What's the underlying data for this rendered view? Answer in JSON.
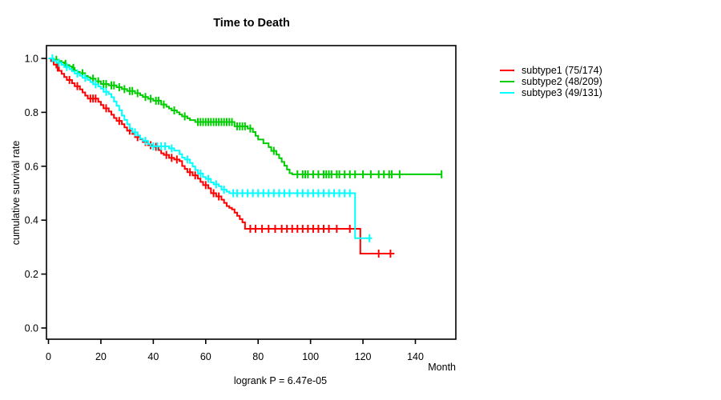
{
  "chart_data": {
    "type": "line",
    "variant": "kaplan-meier-step-survival",
    "title": "Time to Death",
    "xlabel": "Month",
    "ylabel": "cumulative survival rate",
    "annotation": "logrank P = 6.47e-05",
    "xlim": [
      0,
      155
    ],
    "ylim": [
      0,
      1.0
    ],
    "xticks": [
      0,
      20,
      40,
      60,
      80,
      100,
      120,
      140
    ],
    "xtick_labels": [
      "0",
      "20",
      "40",
      "60",
      "80",
      "100",
      "120",
      "140"
    ],
    "yticks": [
      0,
      0.2,
      0.4,
      0.6,
      0.8,
      1.0
    ],
    "ytick_labels": [
      "0.0",
      "0.2",
      "0.4",
      "0.6",
      "0.8",
      "1.0"
    ],
    "grid": false,
    "legend_position": "right-outside",
    "axis_color": "#000000",
    "series": [
      {
        "name": "subtype1 (75/174)",
        "color": "#ff0000",
        "start": [
          0,
          1.0
        ],
        "end_month": 132,
        "steps": [
          [
            1,
            0.99
          ],
          [
            2,
            0.977
          ],
          [
            3,
            0.966
          ],
          [
            4,
            0.954
          ],
          [
            5,
            0.943
          ],
          [
            6,
            0.931
          ],
          [
            7,
            0.92
          ],
          [
            9,
            0.908
          ],
          [
            10,
            0.897
          ],
          [
            12,
            0.885
          ],
          [
            13,
            0.874
          ],
          [
            14,
            0.862
          ],
          [
            15,
            0.851
          ],
          [
            19,
            0.839
          ],
          [
            20,
            0.827
          ],
          [
            21,
            0.815
          ],
          [
            23,
            0.803
          ],
          [
            24,
            0.791
          ],
          [
            25,
            0.779
          ],
          [
            26,
            0.768
          ],
          [
            28,
            0.756
          ],
          [
            29,
            0.744
          ],
          [
            30,
            0.732
          ],
          [
            32,
            0.72
          ],
          [
            33,
            0.708
          ],
          [
            35,
            0.7
          ],
          [
            36,
            0.69
          ],
          [
            38,
            0.678
          ],
          [
            40,
            0.672
          ],
          [
            42,
            0.66
          ],
          [
            43,
            0.648
          ],
          [
            44,
            0.642
          ],
          [
            46,
            0.631
          ],
          [
            48,
            0.625
          ],
          [
            50,
            0.619
          ],
          [
            51,
            0.601
          ],
          [
            52,
            0.59
          ],
          [
            53,
            0.578
          ],
          [
            55,
            0.566
          ],
          [
            57,
            0.554
          ],
          [
            58,
            0.542
          ],
          [
            59,
            0.53
          ],
          [
            61,
            0.518
          ],
          [
            62,
            0.5
          ],
          [
            64,
            0.488
          ],
          [
            66,
            0.476
          ],
          [
            67,
            0.464
          ],
          [
            68,
            0.452
          ],
          [
            69,
            0.446
          ],
          [
            70,
            0.44
          ],
          [
            71,
            0.428
          ],
          [
            72,
            0.416
          ],
          [
            73,
            0.404
          ],
          [
            74,
            0.392
          ],
          [
            75,
            0.368
          ],
          [
            119,
            0.276
          ]
        ],
        "censor_months": [
          3.5,
          8,
          11,
          16,
          17,
          18,
          22,
          27,
          31,
          34,
          37,
          39,
          41,
          45,
          47,
          49,
          54,
          56,
          60,
          63,
          65,
          77,
          79,
          81.5,
          84,
          86.5,
          89,
          91,
          93,
          95,
          97,
          99,
          101,
          103,
          105,
          107,
          110,
          115,
          126,
          130.5
        ]
      },
      {
        "name": "subtype2 (48/209)",
        "color": "#00cd00",
        "start": [
          0,
          1.0
        ],
        "end_month": 150,
        "steps": [
          [
            2,
            0.995
          ],
          [
            4,
            0.99
          ],
          [
            5,
            0.985
          ],
          [
            6,
            0.98
          ],
          [
            7,
            0.975
          ],
          [
            8,
            0.97
          ],
          [
            9,
            0.965
          ],
          [
            10,
            0.955
          ],
          [
            11,
            0.95
          ],
          [
            12,
            0.945
          ],
          [
            14,
            0.935
          ],
          [
            15,
            0.93
          ],
          [
            16,
            0.925
          ],
          [
            18,
            0.915
          ],
          [
            20,
            0.905
          ],
          [
            23,
            0.9
          ],
          [
            26,
            0.893
          ],
          [
            28,
            0.886
          ],
          [
            30,
            0.879
          ],
          [
            33,
            0.871
          ],
          [
            35,
            0.864
          ],
          [
            36,
            0.857
          ],
          [
            38,
            0.85
          ],
          [
            40,
            0.843
          ],
          [
            43,
            0.829
          ],
          [
            45,
            0.821
          ],
          [
            46,
            0.814
          ],
          [
            47,
            0.807
          ],
          [
            49,
            0.8
          ],
          [
            50,
            0.792
          ],
          [
            51,
            0.785
          ],
          [
            53,
            0.778
          ],
          [
            54,
            0.771
          ],
          [
            56,
            0.764
          ],
          [
            71,
            0.748
          ],
          [
            76,
            0.74
          ],
          [
            78,
            0.727
          ],
          [
            79,
            0.713
          ],
          [
            80,
            0.699
          ],
          [
            82,
            0.685
          ],
          [
            84,
            0.671
          ],
          [
            85,
            0.657
          ],
          [
            87,
            0.643
          ],
          [
            88,
            0.63
          ],
          [
            89,
            0.616
          ],
          [
            90,
            0.602
          ],
          [
            91,
            0.588
          ],
          [
            92,
            0.574
          ],
          [
            93,
            0.57
          ]
        ],
        "censor_months": [
          3,
          6.5,
          9.5,
          13,
          17,
          19,
          21,
          22,
          24,
          25,
          27,
          29,
          31,
          32,
          34,
          37,
          39,
          41,
          42,
          44,
          48,
          52,
          57,
          58,
          59,
          60,
          61,
          62,
          63,
          64,
          65,
          66,
          67,
          68,
          69,
          70,
          72,
          73,
          74,
          75,
          77,
          86,
          95,
          97,
          98,
          99,
          101,
          103,
          105,
          106,
          107,
          108,
          110,
          111,
          113,
          115,
          117,
          120,
          123,
          126,
          128,
          130,
          131,
          134,
          150
        ]
      },
      {
        "name": "subtype3 (49/131)",
        "color": "#00ffff",
        "start": [
          0,
          1.0
        ],
        "end_month": 123.5,
        "steps": [
          [
            2,
            0.992
          ],
          [
            3,
            0.984
          ],
          [
            5,
            0.976
          ],
          [
            6,
            0.968
          ],
          [
            8,
            0.96
          ],
          [
            9,
            0.952
          ],
          [
            10,
            0.944
          ],
          [
            12,
            0.936
          ],
          [
            13,
            0.928
          ],
          [
            15,
            0.92
          ],
          [
            16,
            0.912
          ],
          [
            17,
            0.904
          ],
          [
            19,
            0.896
          ],
          [
            20,
            0.888
          ],
          [
            21,
            0.876
          ],
          [
            23,
            0.868
          ],
          [
            24,
            0.856
          ],
          [
            25,
            0.84
          ],
          [
            26,
            0.824
          ],
          [
            27,
            0.808
          ],
          [
            28,
            0.788
          ],
          [
            29,
            0.772
          ],
          [
            30,
            0.756
          ],
          [
            31,
            0.74
          ],
          [
            32,
            0.726
          ],
          [
            34,
            0.714
          ],
          [
            35,
            0.702
          ],
          [
            36,
            0.694
          ],
          [
            38,
            0.682
          ],
          [
            39,
            0.674
          ],
          [
            46,
            0.666
          ],
          [
            48,
            0.658
          ],
          [
            50,
            0.645
          ],
          [
            51,
            0.632
          ],
          [
            52,
            0.625
          ],
          [
            54,
            0.612
          ],
          [
            55,
            0.599
          ],
          [
            56,
            0.586
          ],
          [
            57,
            0.573
          ],
          [
            59,
            0.56
          ],
          [
            60,
            0.553
          ],
          [
            62,
            0.54
          ],
          [
            63,
            0.533
          ],
          [
            65,
            0.526
          ],
          [
            66,
            0.513
          ],
          [
            68,
            0.506
          ],
          [
            69,
            0.5
          ],
          [
            117,
            0.333
          ]
        ],
        "censor_months": [
          1.5,
          4,
          7,
          11,
          14,
          18,
          22,
          33,
          37,
          40,
          41.5,
          43,
          44.5,
          47,
          53,
          58,
          61,
          64,
          67,
          70.5,
          72,
          74,
          76,
          78,
          80,
          82,
          84,
          86,
          88,
          90,
          92,
          95,
          97,
          99,
          101,
          103,
          105,
          107,
          109,
          111,
          113,
          115,
          122.5
        ]
      }
    ]
  }
}
